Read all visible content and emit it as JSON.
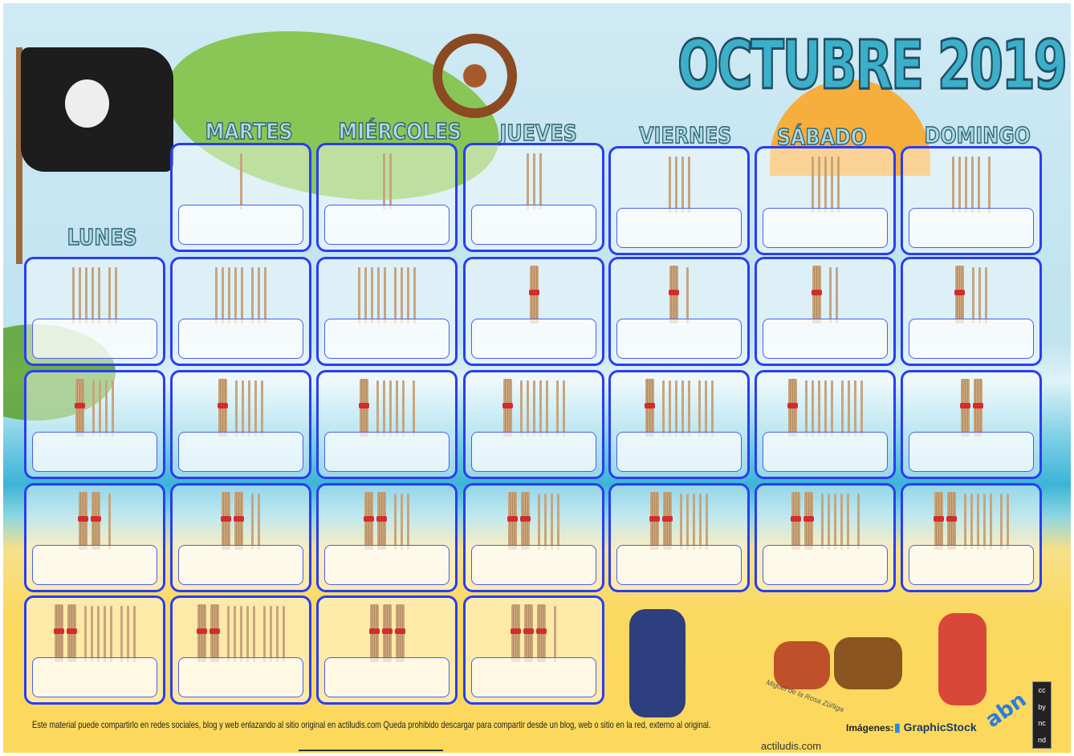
{
  "title": "OCTUBRE 2019",
  "weekdays": [
    "LUNES",
    "MARTES",
    "MIÉRCOLES",
    "JUEVES",
    "VIERNES",
    "SÁBADO",
    "DOMINGO"
  ],
  "first_weekday": "MARTES",
  "days": [
    1,
    2,
    3,
    4,
    5,
    6,
    7,
    8,
    9,
    10,
    11,
    12,
    13,
    14,
    15,
    16,
    17,
    18,
    19,
    20,
    21,
    22,
    23,
    24,
    25,
    26,
    27,
    28,
    29,
    30,
    31
  ],
  "stick_legend": {
    "bundle": 10,
    "single": 1,
    "bundle_band_color": "#d42c2c"
  },
  "colors": {
    "cell_border": "#2a3df2",
    "title": "#3cb0c8",
    "sand": "#fcd95c",
    "sky": "#cfeaf4"
  },
  "footer": {
    "notice": "Este material puede compartirlo en redes sociales, blog y web enlazando al sitio original en actiludis.com Queda prohibido descargar para compartir desde un blog, web o sitio en la red, externo al original.",
    "site": "actiludis.com",
    "images_label": "Imágenes:",
    "graphicstock": "GraphicStock",
    "abn": "abn",
    "signature": "Miguel de la Rosa Zúñiga",
    "license": "CC BY NC ND"
  }
}
